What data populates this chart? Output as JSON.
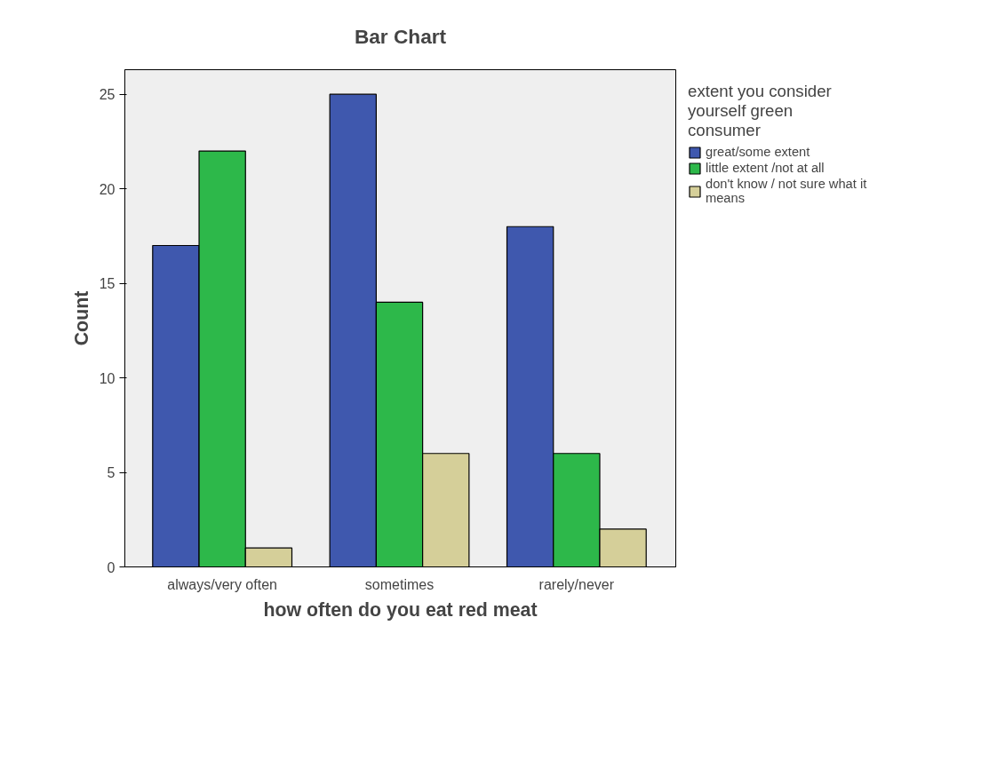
{
  "chart_data": {
    "type": "bar",
    "title": "Bar Chart",
    "xlabel": "how often do you eat red meat",
    "ylabel": "Count",
    "legend_title": "extent you consider yourself green consumer",
    "categories": [
      "always/very often",
      "sometimes",
      "rarely/never"
    ],
    "series": [
      {
        "name": "great/some extent",
        "color": "#3f58ae",
        "values": [
          17,
          25,
          18
        ]
      },
      {
        "name": "little extent /not at all",
        "color": "#2db84a",
        "values": [
          22,
          14,
          6
        ]
      },
      {
        "name": "don't know / not sure what it means",
        "color": "#d5cf99",
        "values": [
          1,
          6,
          2
        ]
      }
    ],
    "ylim": [
      0,
      26.3
    ],
    "yticks": [
      0,
      5,
      10,
      15,
      20,
      25
    ],
    "grid": false,
    "legend": "right"
  }
}
